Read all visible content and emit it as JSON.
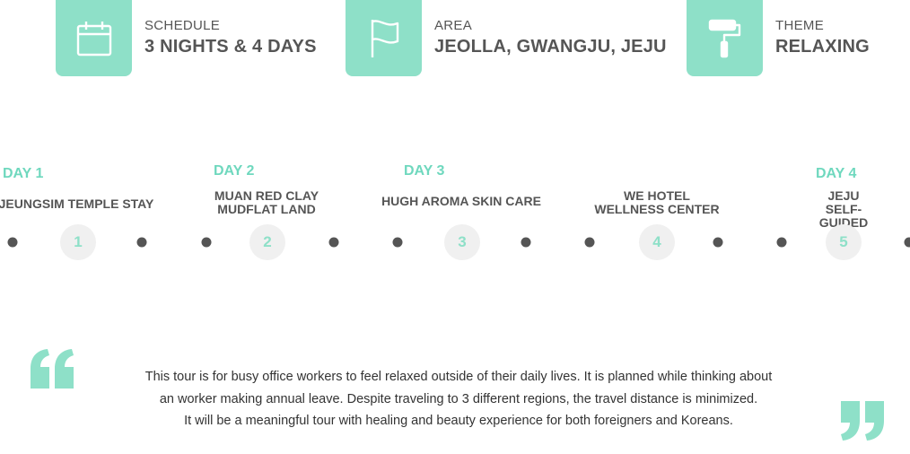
{
  "info": {
    "schedule": {
      "label": "SCHEDULE",
      "value": "3 NIGHTS & 4 DAYS",
      "icon": "calendar-icon"
    },
    "area": {
      "label": "AREA",
      "value": "JEOLLA, GWANGJU, JEJU",
      "icon": "flag-icon"
    },
    "theme": {
      "label": "THEME",
      "value": "RELAXING",
      "icon": "paint-roller-icon"
    }
  },
  "days": [
    "DAY 1",
    "DAY 2",
    "DAY 3",
    "DAY 4"
  ],
  "stops": [
    {
      "number": "1",
      "name": "JEUNGSIM TEMPLE STAY"
    },
    {
      "number": "2",
      "name": "MUAN RED CLAY\nMUDFLAT LAND"
    },
    {
      "number": "3",
      "name": "HUGH AROMA SKIN CARE"
    },
    {
      "number": "4",
      "name": "WE HOTEL\nWELLNESS CENTER"
    },
    {
      "number": "5",
      "name": "JEJU\nSELF-GUIDED TRIP"
    }
  ],
  "description": {
    "line1": "This tour is for busy office workers to feel relaxed outside of their daily lives. It is planned while thinking about",
    "line2": "an worker making annual leave. Despite traveling to 3 different regions, the travel distance is minimized.",
    "line3": "It will be a meaningful tour with healing and beauty experience for both foreigners and Koreans."
  },
  "colors": {
    "accent": "#8ee0c8",
    "accent_text": "#6fd8be",
    "text": "#555555"
  }
}
